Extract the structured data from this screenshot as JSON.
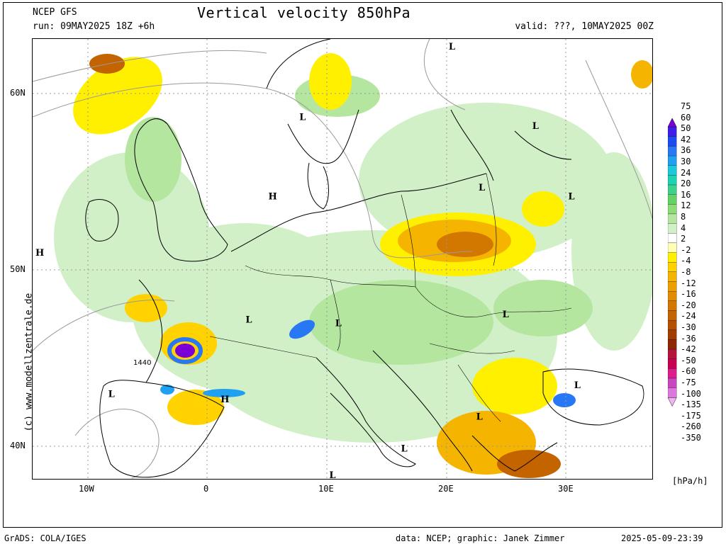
{
  "header": {
    "source": "NCEP GFS",
    "title": "Vertical velocity 850hPa",
    "run": "run: 09MAY2025 18Z +6h",
    "valid": "valid: ???, 10MAY2025 00Z"
  },
  "watermark": "(c) www.modellzentrale.de",
  "map": {
    "lat_labels": [
      "60N",
      "50N",
      "40N"
    ],
    "lon_labels": [
      "10W",
      "0",
      "10E",
      "20E",
      "30E"
    ],
    "pressure_label": "1440",
    "pressure_centers": [
      {
        "type": "H",
        "lon": 5.5,
        "lat": 54.0
      },
      {
        "type": "H",
        "lon": -14.0,
        "lat": 50.8
      },
      {
        "type": "H",
        "lon": 1.5,
        "lat": 42.5
      },
      {
        "type": "L",
        "lon": 8.0,
        "lat": 58.5
      },
      {
        "type": "L",
        "lon": 20.5,
        "lat": 62.5
      },
      {
        "type": "L",
        "lon": 27.5,
        "lat": 58.0
      },
      {
        "type": "L",
        "lon": 23.0,
        "lat": 54.5
      },
      {
        "type": "L",
        "lon": 30.5,
        "lat": 54.0
      },
      {
        "type": "L",
        "lon": 3.5,
        "lat": 47.0
      },
      {
        "type": "L",
        "lon": 11.0,
        "lat": 46.8
      },
      {
        "type": "L",
        "lon": 25.0,
        "lat": 47.3
      },
      {
        "type": "L",
        "lon": -8.0,
        "lat": 42.8
      },
      {
        "type": "L",
        "lon": 31.0,
        "lat": 43.3
      },
      {
        "type": "L",
        "lon": 22.8,
        "lat": 41.5
      },
      {
        "type": "L",
        "lon": 16.5,
        "lat": 39.7
      },
      {
        "type": "L",
        "lon": 10.5,
        "lat": 38.2
      }
    ]
  },
  "colorbar": {
    "unit": "[hPa/h]",
    "levels": [
      "75",
      "60",
      "50",
      "42",
      "36",
      "30",
      "24",
      "20",
      "16",
      "12",
      "8",
      "4",
      "2",
      "-2",
      "-4",
      "-8",
      "-12",
      "-16",
      "-20",
      "-24",
      "-30",
      "-36",
      "-42",
      "-50",
      "-60",
      "-75",
      "-100",
      "-135",
      "-175",
      "-260",
      "-350"
    ],
    "colors": [
      "#7a00d6",
      "#3c1ee6",
      "#1e4bf0",
      "#2878f5",
      "#1fa0f0",
      "#1ec8dc",
      "#1ed2b4",
      "#3cd28c",
      "#64d264",
      "#8cdc78",
      "#b4e6a0",
      "#d2f0c8",
      "#ffffff",
      "#ffffb4",
      "#fff000",
      "#ffd200",
      "#f5b400",
      "#eba000",
      "#e18c00",
      "#d27800",
      "#c36400",
      "#b45000",
      "#a03c00",
      "#8c2800",
      "#b4143c",
      "#c80050",
      "#dc1e8c",
      "#c846be",
      "#dc78dc",
      "#f0b4f0"
    ]
  },
  "footer": {
    "left": "GrADS: COLA/IGES",
    "middle": "data: NCEP; graphic: Janek Zimmer",
    "right": "2025-05-09-23:39"
  }
}
